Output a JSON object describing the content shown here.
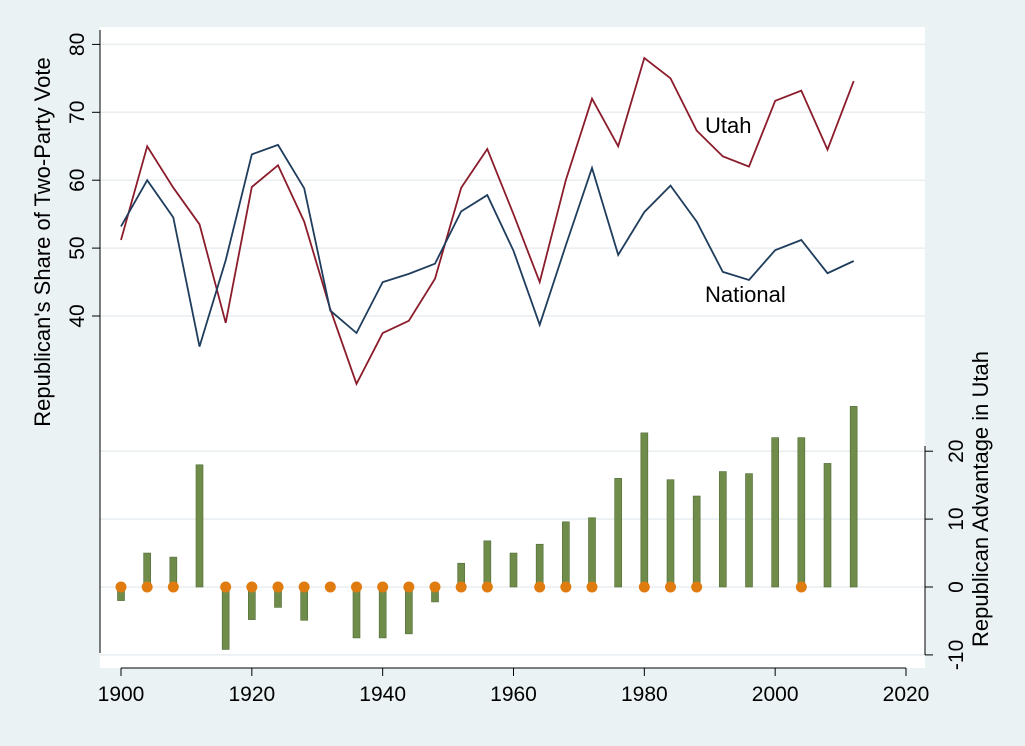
{
  "chart_data": {
    "type": "line",
    "left_axis": {
      "label": "Republican's Share of Two-Party Vote",
      "ticks": [
        40,
        50,
        60,
        70,
        80
      ]
    },
    "right_axis": {
      "label": "Republican Advantage in Utah",
      "ticks": [
        -10,
        0,
        10,
        20
      ]
    },
    "x_axis": {
      "ticks": [
        1900,
        1920,
        1940,
        1960,
        1980,
        2000,
        2020
      ]
    },
    "x": [
      1900,
      1904,
      1908,
      1912,
      1916,
      1920,
      1924,
      1928,
      1932,
      1936,
      1940,
      1944,
      1948,
      1952,
      1956,
      1960,
      1964,
      1968,
      1972,
      1976,
      1980,
      1984,
      1988,
      1992,
      1996,
      2000,
      2004,
      2008,
      2012
    ],
    "series": [
      {
        "name": "Utah",
        "color": "#8b1c2b",
        "values": [
          51.2,
          65.0,
          58.9,
          53.5,
          39.0,
          59.0,
          62.2,
          53.9,
          41.0,
          30.0,
          37.5,
          39.3,
          45.5,
          58.9,
          64.6,
          55.0,
          45.0,
          60.0,
          72.0,
          65.0,
          78.0,
          75.0,
          67.3,
          63.5,
          62.0,
          71.7,
          73.2,
          64.5,
          74.6
        ]
      },
      {
        "name": "National",
        "color": "#1f3d5c",
        "values": [
          53.2,
          60.0,
          54.5,
          35.5,
          48.2,
          63.8,
          65.2,
          58.8,
          40.8,
          37.5,
          45.0,
          46.2,
          47.7,
          55.4,
          57.8,
          49.6,
          38.7,
          50.4,
          61.8,
          49.0,
          55.3,
          59.2,
          53.9,
          46.5,
          45.3,
          49.7,
          51.2,
          46.3,
          48.1
        ]
      },
      {
        "name": "Republican Advantage in Utah",
        "type": "bar",
        "color": "#6f8c4a",
        "values": [
          -2.0,
          5.0,
          4.4,
          18.0,
          -9.2,
          -4.8,
          -3.0,
          -4.9,
          0.2,
          -7.5,
          -7.5,
          -6.9,
          -2.2,
          3.5,
          6.8,
          5.0,
          6.3,
          9.6,
          10.2,
          16.0,
          22.7,
          15.8,
          13.4,
          17.0,
          16.7,
          22.0,
          22.0,
          18.2,
          26.6
        ]
      }
    ],
    "zero_markers": {
      "color": "#e07b10",
      "x": [
        1900,
        1904,
        1908,
        1916,
        1920,
        1924,
        1928,
        1932,
        1936,
        1940,
        1944,
        1948,
        1952,
        1956,
        1964,
        1968,
        1972,
        1980,
        1984,
        1988,
        2004
      ]
    },
    "grid": true
  }
}
